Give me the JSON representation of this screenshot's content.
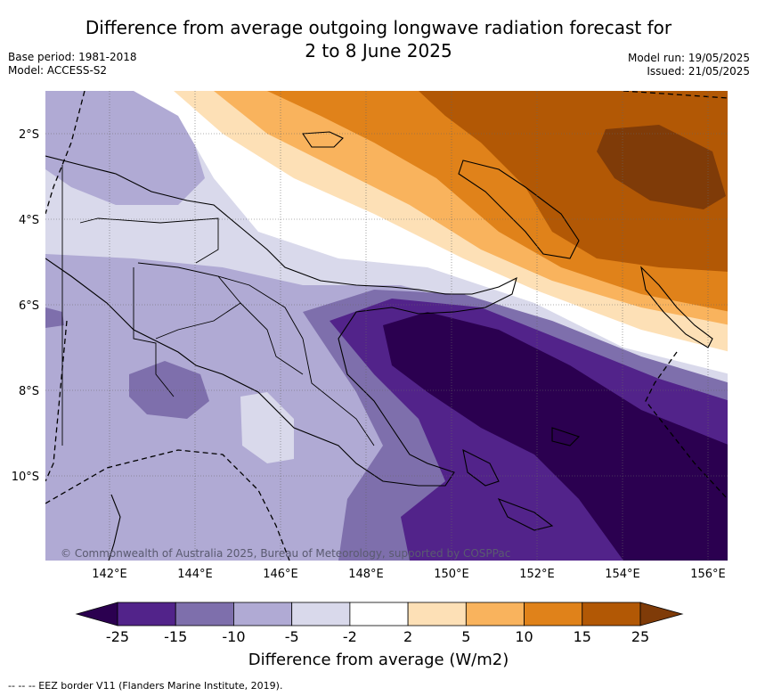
{
  "title_line1": "Difference from average outgoing longwave radiation forecast for",
  "title_line2": "2 to 8 June 2025",
  "base_period": "Base period: 1981-2018",
  "model": "Model: ACCESS-S2",
  "model_run": "Model run: 19/05/2025",
  "issued": "Issued: 21/05/2025",
  "copyright": "© Commonwealth of Australia 2025, Bureau of Meteorology, supported by COSPPac",
  "map": {
    "lon_range": [
      140.5,
      156.5
    ],
    "lat_range": [
      -12,
      -1
    ],
    "lon_ticks": [
      "142°E",
      "144°E",
      "146°E",
      "148°E",
      "150°E",
      "152°E",
      "154°E",
      "156°E"
    ],
    "lat_ticks": [
      "2°S",
      "4°S",
      "6°S",
      "8°S",
      "10°S"
    ]
  },
  "colorbar": {
    "label": "Difference from average (W/m2)",
    "ticks": [
      "-25",
      "-15",
      "-10",
      "-5",
      "-2",
      "2",
      "5",
      "10",
      "15",
      "25"
    ],
    "colors": [
      "#2b0050",
      "#52238a",
      "#7e6fac",
      "#b0aad4",
      "#d9d9eb",
      "#ffffff",
      "#fde0b6",
      "#f9b35d",
      "#e0821a",
      "#b25805",
      "#7f3b08"
    ]
  },
  "footnote": "-- -- -- EEZ border V11 (Flanders Marine Institute, 2019)."
}
